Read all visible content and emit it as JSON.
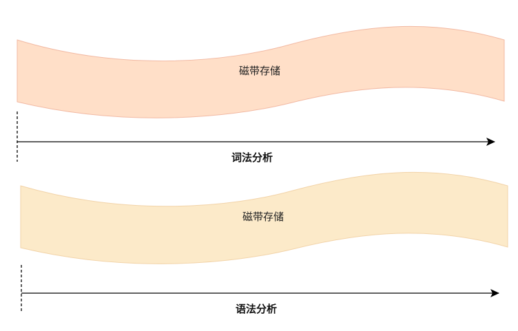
{
  "panels": [
    {
      "tape": {
        "label": "磁带存储",
        "fill": "#FFDFC8",
        "stroke": "#F2B9A3"
      },
      "axis": {
        "label": "词法分析",
        "color": "#000000"
      }
    },
    {
      "tape": {
        "label": "磁带存储",
        "fill": "#FCEAC9",
        "stroke": "#F2D3A8"
      },
      "axis": {
        "label": "语法分析",
        "color": "#000000"
      }
    }
  ]
}
